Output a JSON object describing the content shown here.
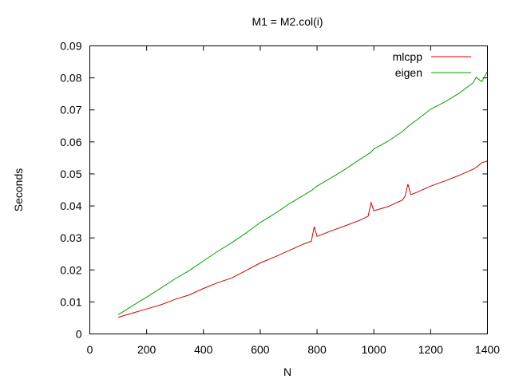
{
  "chart_data": {
    "type": "line",
    "title": "M1 = M2.col(i)",
    "xlabel": "N",
    "ylabel": "Seconds",
    "xlim": [
      0,
      1400
    ],
    "ylim": [
      0,
      0.09
    ],
    "x_ticks": [
      0,
      200,
      400,
      600,
      800,
      1000,
      1200,
      1400
    ],
    "x_tick_labels": [
      "0",
      "200",
      "400",
      "600",
      "800",
      "1000",
      "1200",
      "1400"
    ],
    "y_ticks": [
      0,
      0.01,
      0.02,
      0.03,
      0.04,
      0.05,
      0.06,
      0.07,
      0.08,
      0.09
    ],
    "y_tick_labels": [
      "0",
      "0.01",
      "0.02",
      "0.03",
      "0.04",
      "0.05",
      "0.06",
      "0.07",
      "0.08",
      "0.09"
    ],
    "grid": false,
    "legend_position": "top-right",
    "x": [
      100,
      150,
      200,
      250,
      300,
      350,
      400,
      450,
      500,
      550,
      600,
      650,
      700,
      750,
      780,
      790,
      800,
      850,
      900,
      950,
      980,
      990,
      1000,
      1050,
      1100,
      1110,
      1120,
      1130,
      1150,
      1200,
      1250,
      1300,
      1350,
      1360,
      1380,
      1400
    ],
    "series": [
      {
        "name": "mlcpp",
        "color": "#d40000",
        "values": [
          0.0052,
          0.0065,
          0.0078,
          0.0091,
          0.0108,
          0.0122,
          0.0142,
          0.016,
          0.0175,
          0.0198,
          0.0222,
          0.024,
          0.026,
          0.028,
          0.029,
          0.0335,
          0.0305,
          0.0322,
          0.0338,
          0.0355,
          0.0368,
          0.041,
          0.0385,
          0.0398,
          0.0418,
          0.043,
          0.0468,
          0.0435,
          0.0442,
          0.0462,
          0.0478,
          0.0495,
          0.0515,
          0.052,
          0.0535,
          0.054
        ]
      },
      {
        "name": "eigen",
        "color": "#00a000",
        "values": [
          0.006,
          0.0088,
          0.0115,
          0.0143,
          0.0172,
          0.0198,
          0.0228,
          0.0258,
          0.0285,
          0.0315,
          0.0348,
          0.0375,
          0.0405,
          0.0432,
          0.0448,
          0.0455,
          0.0462,
          0.0488,
          0.0515,
          0.0545,
          0.0562,
          0.0568,
          0.0578,
          0.0602,
          0.0632,
          0.064,
          0.0648,
          0.0655,
          0.0668,
          0.0702,
          0.0725,
          0.0752,
          0.0785,
          0.0802,
          0.0788,
          0.082
        ]
      }
    ]
  }
}
